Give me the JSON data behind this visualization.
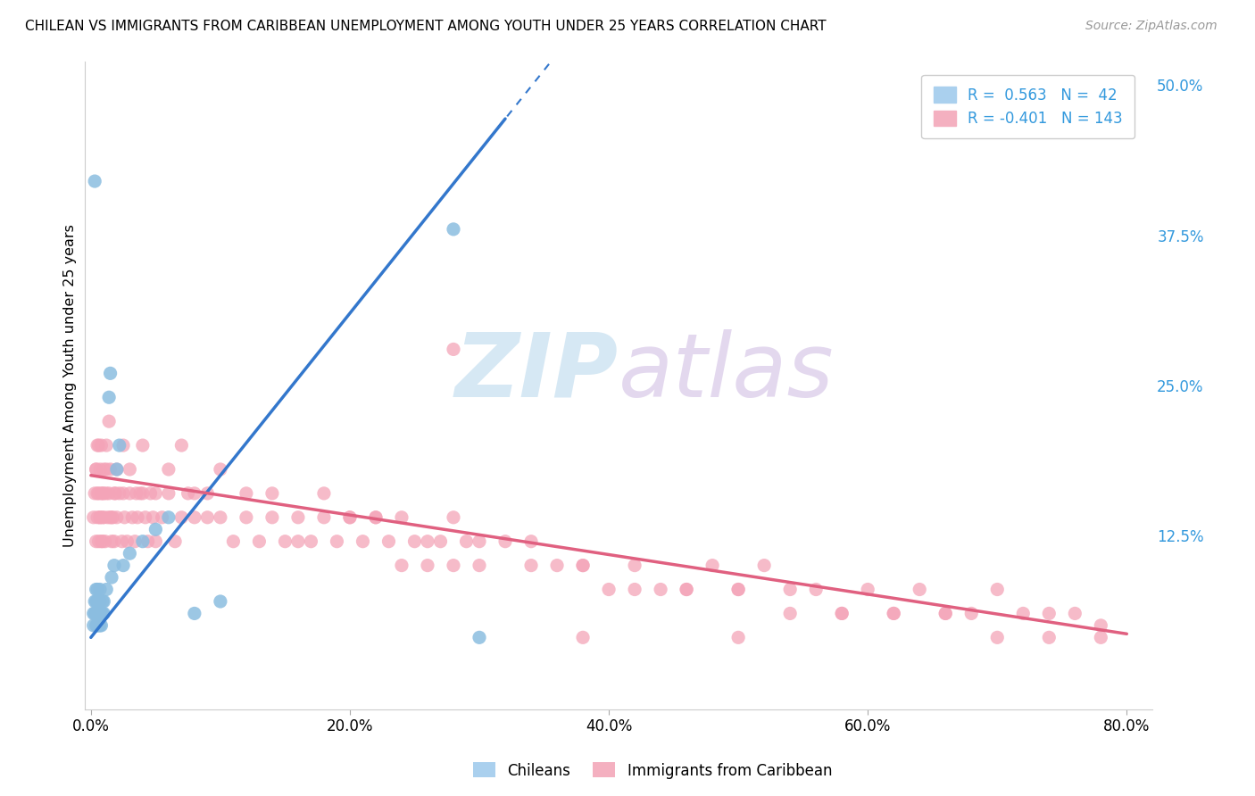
{
  "title": "CHILEAN VS IMMIGRANTS FROM CARIBBEAN UNEMPLOYMENT AMONG YOUTH UNDER 25 YEARS CORRELATION CHART",
  "source": "Source: ZipAtlas.com",
  "ylabel": "Unemployment Among Youth under 25 years",
  "xlabel_ticks": [
    "0.0%",
    "20.0%",
    "40.0%",
    "60.0%",
    "80.0%"
  ],
  "xlabel_vals": [
    0.0,
    0.2,
    0.4,
    0.6,
    0.8
  ],
  "ylabel_ticks": [
    "12.5%",
    "25.0%",
    "37.5%",
    "50.0%"
  ],
  "ylabel_vals": [
    0.125,
    0.25,
    0.375,
    0.5
  ],
  "xlim": [
    -0.005,
    0.82
  ],
  "ylim": [
    -0.02,
    0.52
  ],
  "blue_color": "#8bbde0",
  "pink_color": "#f4a4b8",
  "trend_blue": "#3377cc",
  "trend_pink": "#e06080",
  "watermark_color": "#d8e8f4",
  "watermark_ZIP": "ZIP",
  "watermark_atlas": "atlas",
  "legend_label_blue": "Chileans",
  "legend_label_pink": "Immigrants from Caribbean",
  "blue_x": [
    0.002,
    0.002,
    0.003,
    0.003,
    0.003,
    0.004,
    0.004,
    0.004,
    0.004,
    0.005,
    0.005,
    0.005,
    0.005,
    0.006,
    0.006,
    0.006,
    0.007,
    0.007,
    0.007,
    0.007,
    0.008,
    0.008,
    0.009,
    0.009,
    0.01,
    0.01,
    0.012,
    0.014,
    0.015,
    0.016,
    0.018,
    0.02,
    0.022,
    0.025,
    0.03,
    0.04,
    0.05,
    0.06,
    0.08,
    0.1,
    0.28,
    0.3
  ],
  "blue_y": [
    0.05,
    0.06,
    0.06,
    0.07,
    0.42,
    0.05,
    0.06,
    0.07,
    0.08,
    0.05,
    0.06,
    0.07,
    0.08,
    0.05,
    0.06,
    0.07,
    0.05,
    0.06,
    0.07,
    0.08,
    0.05,
    0.06,
    0.06,
    0.07,
    0.06,
    0.07,
    0.08,
    0.24,
    0.26,
    0.09,
    0.1,
    0.18,
    0.2,
    0.1,
    0.11,
    0.12,
    0.13,
    0.14,
    0.06,
    0.07,
    0.38,
    0.04
  ],
  "pink_x": [
    0.002,
    0.003,
    0.004,
    0.004,
    0.005,
    0.005,
    0.006,
    0.006,
    0.007,
    0.007,
    0.008,
    0.008,
    0.009,
    0.009,
    0.01,
    0.01,
    0.011,
    0.012,
    0.012,
    0.013,
    0.014,
    0.015,
    0.015,
    0.016,
    0.017,
    0.018,
    0.019,
    0.02,
    0.022,
    0.024,
    0.025,
    0.026,
    0.028,
    0.03,
    0.032,
    0.034,
    0.036,
    0.038,
    0.04,
    0.042,
    0.044,
    0.046,
    0.048,
    0.05,
    0.055,
    0.06,
    0.065,
    0.07,
    0.075,
    0.08,
    0.09,
    0.1,
    0.11,
    0.12,
    0.13,
    0.14,
    0.15,
    0.16,
    0.17,
    0.18,
    0.19,
    0.2,
    0.21,
    0.22,
    0.23,
    0.24,
    0.25,
    0.26,
    0.27,
    0.28,
    0.29,
    0.3,
    0.32,
    0.34,
    0.36,
    0.38,
    0.4,
    0.42,
    0.44,
    0.46,
    0.48,
    0.5,
    0.52,
    0.54,
    0.56,
    0.58,
    0.6,
    0.62,
    0.64,
    0.66,
    0.68,
    0.7,
    0.72,
    0.74,
    0.76,
    0.78,
    0.004,
    0.005,
    0.006,
    0.007,
    0.008,
    0.009,
    0.01,
    0.012,
    0.014,
    0.016,
    0.018,
    0.02,
    0.025,
    0.03,
    0.035,
    0.04,
    0.05,
    0.06,
    0.07,
    0.08,
    0.09,
    0.1,
    0.12,
    0.14,
    0.16,
    0.18,
    0.2,
    0.22,
    0.24,
    0.26,
    0.28,
    0.3,
    0.34,
    0.38,
    0.42,
    0.46,
    0.5,
    0.54,
    0.58,
    0.62,
    0.66,
    0.7,
    0.74,
    0.78,
    0.28,
    0.38,
    0.5
  ],
  "pink_y": [
    0.14,
    0.16,
    0.12,
    0.18,
    0.14,
    0.2,
    0.12,
    0.16,
    0.14,
    0.18,
    0.12,
    0.16,
    0.12,
    0.14,
    0.14,
    0.16,
    0.12,
    0.16,
    0.18,
    0.14,
    0.16,
    0.14,
    0.18,
    0.12,
    0.14,
    0.12,
    0.16,
    0.14,
    0.16,
    0.12,
    0.16,
    0.14,
    0.12,
    0.16,
    0.14,
    0.12,
    0.14,
    0.16,
    0.16,
    0.14,
    0.12,
    0.16,
    0.14,
    0.12,
    0.14,
    0.16,
    0.12,
    0.14,
    0.16,
    0.14,
    0.14,
    0.14,
    0.12,
    0.14,
    0.12,
    0.14,
    0.12,
    0.12,
    0.12,
    0.14,
    0.12,
    0.14,
    0.12,
    0.14,
    0.12,
    0.1,
    0.12,
    0.1,
    0.12,
    0.1,
    0.12,
    0.1,
    0.12,
    0.1,
    0.1,
    0.1,
    0.08,
    0.1,
    0.08,
    0.08,
    0.1,
    0.08,
    0.1,
    0.08,
    0.08,
    0.06,
    0.08,
    0.06,
    0.08,
    0.06,
    0.06,
    0.08,
    0.06,
    0.06,
    0.06,
    0.05,
    0.18,
    0.16,
    0.2,
    0.14,
    0.2,
    0.16,
    0.18,
    0.2,
    0.22,
    0.14,
    0.16,
    0.18,
    0.2,
    0.18,
    0.16,
    0.2,
    0.16,
    0.18,
    0.2,
    0.16,
    0.16,
    0.18,
    0.16,
    0.16,
    0.14,
    0.16,
    0.14,
    0.14,
    0.14,
    0.12,
    0.14,
    0.12,
    0.12,
    0.1,
    0.08,
    0.08,
    0.08,
    0.06,
    0.06,
    0.06,
    0.06,
    0.04,
    0.04,
    0.04,
    0.28,
    0.04,
    0.04
  ],
  "blue_trend_x": [
    0.0,
    0.32
  ],
  "blue_trend_y_start": 0.04,
  "blue_trend_slope": 1.35,
  "pink_trend_x": [
    0.0,
    0.8
  ],
  "pink_trend_y_start": 0.175,
  "pink_trend_slope": -0.165
}
